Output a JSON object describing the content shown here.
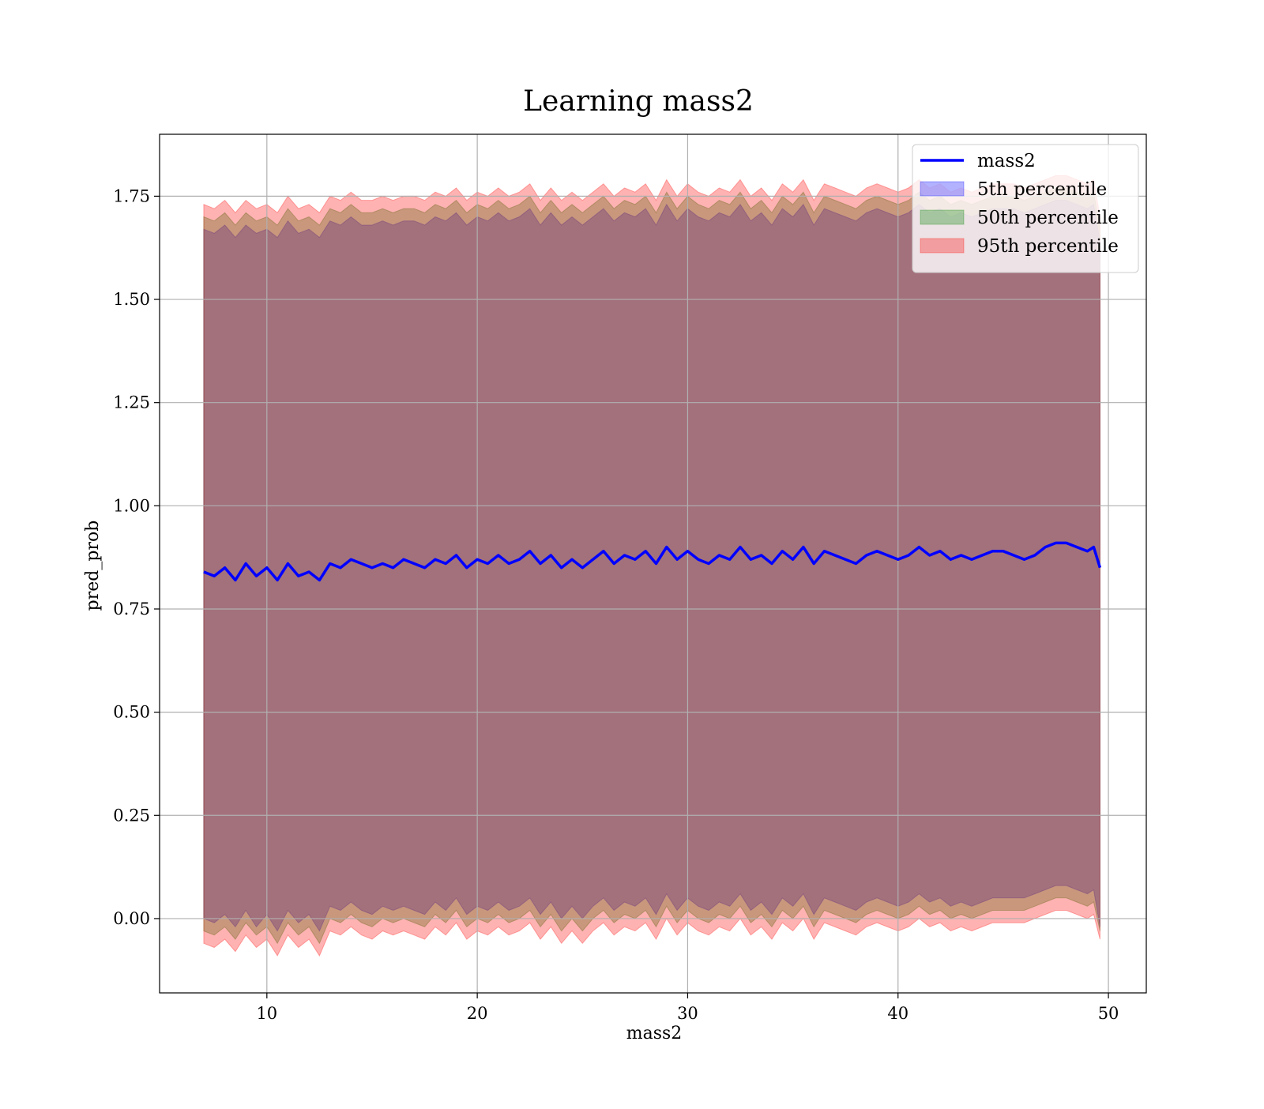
{
  "chart_data": {
    "type": "line",
    "title": "Learning mass2",
    "xlabel": "mass2",
    "ylabel": "pred_prob",
    "xlim": [
      4.9,
      51.8
    ],
    "ylim": [
      -0.18,
      1.9
    ],
    "xticks": [
      10,
      20,
      30,
      40,
      50
    ],
    "yticks": [
      0.0,
      0.25,
      0.5,
      0.75,
      1.0,
      1.25,
      1.5,
      1.75
    ],
    "ytick_labels": [
      "0.00",
      "0.25",
      "0.50",
      "0.75",
      "1.00",
      "1.25",
      "1.50",
      "1.75"
    ],
    "grid": true,
    "legend_position": "upper right",
    "x": [
      7.0,
      7.5,
      8.0,
      8.5,
      9.0,
      9.5,
      10.0,
      10.5,
      11.0,
      11.5,
      12.0,
      12.5,
      13.0,
      13.5,
      14.0,
      14.5,
      15.0,
      15.5,
      16.0,
      16.5,
      17.0,
      17.5,
      18.0,
      18.5,
      19.0,
      19.5,
      20.0,
      20.5,
      21.0,
      21.5,
      22.0,
      22.5,
      23.0,
      23.5,
      24.0,
      24.5,
      25.0,
      25.5,
      26.0,
      26.5,
      27.0,
      27.5,
      28.0,
      28.5,
      29.0,
      29.5,
      30.0,
      30.5,
      31.0,
      31.5,
      32.0,
      32.5,
      33.0,
      33.5,
      34.0,
      34.5,
      35.0,
      35.5,
      36.0,
      36.5,
      37.0,
      37.5,
      38.0,
      38.5,
      39.0,
      39.5,
      40.0,
      40.5,
      41.0,
      41.5,
      42.0,
      42.5,
      43.0,
      43.5,
      44.0,
      44.5,
      45.0,
      45.5,
      46.0,
      46.5,
      47.0,
      47.5,
      48.0,
      48.5,
      49.0,
      49.3,
      49.6
    ],
    "series": [
      {
        "name": "mass2",
        "kind": "line",
        "color": "#0000ff",
        "values": [
          0.84,
          0.83,
          0.85,
          0.82,
          0.86,
          0.83,
          0.85,
          0.82,
          0.86,
          0.83,
          0.84,
          0.82,
          0.86,
          0.85,
          0.87,
          0.86,
          0.85,
          0.86,
          0.85,
          0.87,
          0.86,
          0.85,
          0.87,
          0.86,
          0.88,
          0.85,
          0.87,
          0.86,
          0.88,
          0.86,
          0.87,
          0.89,
          0.86,
          0.88,
          0.85,
          0.87,
          0.85,
          0.87,
          0.89,
          0.86,
          0.88,
          0.87,
          0.89,
          0.86,
          0.9,
          0.87,
          0.89,
          0.87,
          0.86,
          0.88,
          0.87,
          0.9,
          0.87,
          0.88,
          0.86,
          0.89,
          0.87,
          0.9,
          0.86,
          0.89,
          0.88,
          0.87,
          0.86,
          0.88,
          0.89,
          0.88,
          0.87,
          0.88,
          0.9,
          0.88,
          0.89,
          0.87,
          0.88,
          0.87,
          0.88,
          0.89,
          0.89,
          0.88,
          0.87,
          0.88,
          0.9,
          0.91,
          0.91,
          0.9,
          0.89,
          0.9,
          0.85
        ]
      },
      {
        "name": "5th percentile",
        "kind": "band",
        "color": "#0000ff",
        "lower": [
          0.0,
          -0.01,
          0.01,
          -0.02,
          0.02,
          -0.02,
          0.01,
          -0.03,
          0.02,
          -0.01,
          0.01,
          -0.03,
          0.03,
          0.02,
          0.04,
          0.02,
          0.01,
          0.03,
          0.02,
          0.03,
          0.02,
          0.01,
          0.04,
          0.02,
          0.05,
          0.01,
          0.03,
          0.02,
          0.04,
          0.02,
          0.03,
          0.05,
          0.01,
          0.04,
          0.0,
          0.03,
          0.0,
          0.03,
          0.05,
          0.02,
          0.04,
          0.03,
          0.05,
          0.01,
          0.06,
          0.02,
          0.05,
          0.03,
          0.02,
          0.04,
          0.03,
          0.06,
          0.02,
          0.04,
          0.01,
          0.05,
          0.03,
          0.06,
          0.01,
          0.05,
          0.04,
          0.03,
          0.02,
          0.04,
          0.05,
          0.04,
          0.03,
          0.04,
          0.06,
          0.04,
          0.05,
          0.03,
          0.04,
          0.03,
          0.04,
          0.05,
          0.05,
          0.05,
          0.05,
          0.06,
          0.07,
          0.08,
          0.08,
          0.07,
          0.06,
          0.07,
          -0.02
        ],
        "upper": [
          1.67,
          1.66,
          1.68,
          1.65,
          1.68,
          1.66,
          1.67,
          1.65,
          1.69,
          1.66,
          1.67,
          1.65,
          1.69,
          1.68,
          1.7,
          1.68,
          1.68,
          1.69,
          1.68,
          1.69,
          1.69,
          1.68,
          1.7,
          1.69,
          1.71,
          1.68,
          1.7,
          1.69,
          1.71,
          1.69,
          1.7,
          1.72,
          1.68,
          1.71,
          1.68,
          1.7,
          1.68,
          1.7,
          1.72,
          1.69,
          1.71,
          1.7,
          1.72,
          1.68,
          1.73,
          1.69,
          1.72,
          1.7,
          1.69,
          1.71,
          1.7,
          1.73,
          1.69,
          1.71,
          1.68,
          1.72,
          1.7,
          1.73,
          1.68,
          1.72,
          1.71,
          1.7,
          1.69,
          1.71,
          1.72,
          1.71,
          1.7,
          1.71,
          1.73,
          1.71,
          1.72,
          1.7,
          1.71,
          1.7,
          1.71,
          1.72,
          1.72,
          1.72,
          1.71,
          1.72,
          1.73,
          1.74,
          1.74,
          1.73,
          1.72,
          1.73,
          1.64
        ]
      },
      {
        "name": "50th percentile",
        "kind": "band",
        "color": "#008000",
        "lower": [
          -0.03,
          -0.04,
          -0.02,
          -0.05,
          -0.01,
          -0.04,
          -0.02,
          -0.06,
          -0.01,
          -0.04,
          -0.02,
          -0.06,
          0.0,
          -0.01,
          0.01,
          -0.01,
          -0.02,
          0.0,
          -0.01,
          0.0,
          -0.01,
          -0.02,
          0.01,
          -0.01,
          0.02,
          -0.02,
          0.0,
          -0.01,
          0.01,
          -0.01,
          0.0,
          0.02,
          -0.02,
          0.01,
          -0.03,
          0.0,
          -0.03,
          0.0,
          0.02,
          -0.01,
          0.01,
          0.0,
          0.02,
          -0.02,
          0.03,
          -0.01,
          0.02,
          0.0,
          -0.01,
          0.01,
          0.0,
          0.03,
          -0.01,
          0.01,
          -0.02,
          0.02,
          0.0,
          0.03,
          -0.02,
          0.02,
          0.01,
          0.0,
          -0.01,
          0.01,
          0.02,
          0.01,
          0.0,
          0.01,
          0.03,
          0.01,
          0.02,
          0.0,
          0.01,
          0.0,
          0.01,
          0.02,
          0.02,
          0.02,
          0.02,
          0.03,
          0.04,
          0.05,
          0.05,
          0.04,
          0.03,
          0.04,
          -0.03
        ],
        "upper": [
          1.7,
          1.69,
          1.71,
          1.68,
          1.71,
          1.69,
          1.7,
          1.68,
          1.72,
          1.69,
          1.7,
          1.68,
          1.72,
          1.71,
          1.73,
          1.71,
          1.71,
          1.72,
          1.71,
          1.72,
          1.72,
          1.71,
          1.73,
          1.72,
          1.74,
          1.71,
          1.73,
          1.72,
          1.74,
          1.72,
          1.73,
          1.75,
          1.71,
          1.74,
          1.71,
          1.73,
          1.71,
          1.73,
          1.75,
          1.72,
          1.74,
          1.73,
          1.75,
          1.71,
          1.76,
          1.72,
          1.75,
          1.73,
          1.72,
          1.74,
          1.73,
          1.76,
          1.72,
          1.74,
          1.71,
          1.75,
          1.73,
          1.76,
          1.71,
          1.75,
          1.74,
          1.73,
          1.72,
          1.74,
          1.75,
          1.74,
          1.73,
          1.74,
          1.76,
          1.74,
          1.75,
          1.73,
          1.74,
          1.73,
          1.74,
          1.75,
          1.75,
          1.75,
          1.74,
          1.75,
          1.76,
          1.77,
          1.77,
          1.76,
          1.75,
          1.76,
          1.67
        ]
      },
      {
        "name": "95th percentile",
        "kind": "band",
        "color": "#ff0000",
        "lower": [
          -0.06,
          -0.07,
          -0.05,
          -0.08,
          -0.04,
          -0.07,
          -0.05,
          -0.09,
          -0.04,
          -0.07,
          -0.05,
          -0.09,
          -0.03,
          -0.04,
          -0.02,
          -0.04,
          -0.05,
          -0.03,
          -0.04,
          -0.03,
          -0.04,
          -0.05,
          -0.02,
          -0.04,
          -0.01,
          -0.05,
          -0.03,
          -0.04,
          -0.02,
          -0.04,
          -0.03,
          -0.01,
          -0.05,
          -0.02,
          -0.06,
          -0.03,
          -0.06,
          -0.03,
          -0.01,
          -0.04,
          -0.02,
          -0.03,
          -0.01,
          -0.05,
          0.0,
          -0.04,
          -0.01,
          -0.03,
          -0.04,
          -0.02,
          -0.03,
          0.0,
          -0.04,
          -0.02,
          -0.05,
          -0.01,
          -0.03,
          0.0,
          -0.05,
          -0.01,
          -0.02,
          -0.03,
          -0.04,
          -0.02,
          -0.01,
          -0.02,
          -0.03,
          -0.02,
          0.0,
          -0.02,
          -0.01,
          -0.03,
          -0.02,
          -0.03,
          -0.02,
          -0.01,
          -0.01,
          -0.01,
          -0.01,
          0.0,
          0.01,
          0.02,
          0.02,
          0.01,
          0.0,
          0.01,
          -0.05
        ],
        "upper": [
          1.73,
          1.72,
          1.74,
          1.71,
          1.74,
          1.72,
          1.73,
          1.71,
          1.75,
          1.72,
          1.73,
          1.71,
          1.75,
          1.74,
          1.76,
          1.74,
          1.74,
          1.75,
          1.74,
          1.75,
          1.75,
          1.74,
          1.76,
          1.75,
          1.77,
          1.74,
          1.76,
          1.75,
          1.77,
          1.75,
          1.76,
          1.78,
          1.74,
          1.77,
          1.74,
          1.76,
          1.74,
          1.76,
          1.78,
          1.75,
          1.77,
          1.76,
          1.78,
          1.74,
          1.79,
          1.75,
          1.78,
          1.76,
          1.75,
          1.77,
          1.76,
          1.79,
          1.75,
          1.77,
          1.74,
          1.78,
          1.76,
          1.79,
          1.74,
          1.78,
          1.77,
          1.76,
          1.75,
          1.77,
          1.78,
          1.77,
          1.76,
          1.77,
          1.79,
          1.77,
          1.78,
          1.76,
          1.77,
          1.76,
          1.77,
          1.78,
          1.78,
          1.78,
          1.77,
          1.78,
          1.79,
          1.8,
          1.8,
          1.79,
          1.78,
          1.79,
          1.7
        ]
      }
    ]
  }
}
